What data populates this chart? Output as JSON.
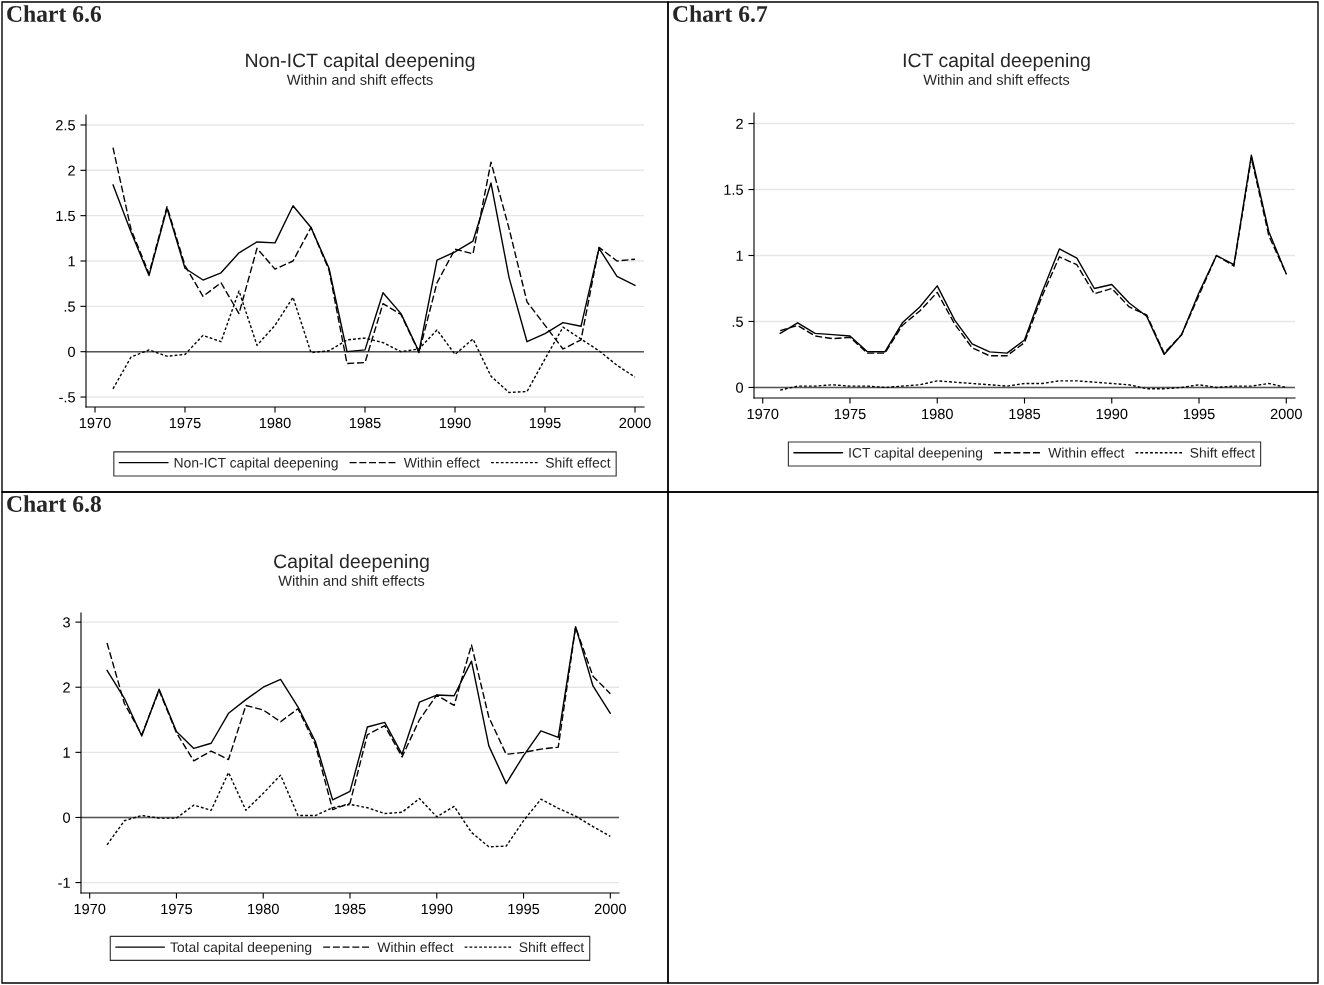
{
  "chart_data": [
    {
      "type": "line",
      "title": "Non-ICT capital deepening",
      "subtitle": "Within and shift effects",
      "annotations": [
        "Chart 6.6"
      ],
      "x": [
        1971,
        1972,
        1973,
        1974,
        1975,
        1976,
        1977,
        1978,
        1979,
        1980,
        1981,
        1982,
        1983,
        1984,
        1985,
        1986,
        1987,
        1988,
        1989,
        1990,
        1991,
        1992,
        1993,
        1994,
        1995,
        1996,
        1997,
        1998,
        1999,
        2000
      ],
      "series": [
        {
          "name": "Non-ICT capital deepening",
          "color": "#000000",
          "line_style": "solid",
          "values": [
            1.84,
            1.32,
            0.84,
            1.58,
            0.92,
            0.79,
            0.87,
            1.09,
            1.21,
            1.2,
            1.61,
            1.37,
            0.92,
            0.0,
            0.02,
            0.65,
            0.42,
            0.0,
            1.01,
            1.1,
            1.22,
            1.86,
            0.82,
            0.11,
            0.2,
            0.32,
            0.28,
            1.14,
            0.83,
            0.73
          ]
        },
        {
          "name": "Within effect",
          "color": "#000000",
          "line_style": "dashed",
          "values": [
            2.25,
            1.35,
            0.86,
            1.6,
            0.95,
            0.61,
            0.76,
            0.42,
            1.14,
            0.91,
            1.0,
            1.37,
            0.9,
            -0.13,
            -0.12,
            0.53,
            0.41,
            -0.01,
            0.76,
            1.13,
            1.08,
            2.09,
            1.36,
            0.55,
            0.29,
            0.03,
            0.13,
            1.15,
            1.0,
            1.02
          ]
        },
        {
          "name": "Shift effect",
          "color": "#000000",
          "line_style": "dotted",
          "values": [
            -0.41,
            -0.06,
            0.02,
            -0.05,
            -0.03,
            0.18,
            0.11,
            0.67,
            0.07,
            0.29,
            0.6,
            -0.01,
            0.01,
            0.13,
            0.15,
            0.1,
            0.0,
            0.03,
            0.24,
            -0.03,
            0.14,
            -0.27,
            -0.45,
            -0.44,
            -0.08,
            0.27,
            0.14,
            0.01,
            -0.15,
            -0.28
          ]
        }
      ],
      "xlim": [
        1969.5,
        2000.5
      ],
      "xticks": [
        1970,
        1975,
        1980,
        1985,
        1990,
        1995,
        2000
      ],
      "ylim": [
        -0.61,
        2.61
      ],
      "yticks": [
        {
          "value": -0.5,
          "label": "-.5"
        },
        0,
        {
          "value": 0.5,
          "label": ".5"
        },
        1,
        {
          "value": 1.5,
          "label": "1.5"
        },
        2,
        {
          "value": 2.5,
          "label": "2.5"
        }
      ],
      "grid": "y",
      "legend": "bottom",
      "ref_lines": [
        {
          "axis": "y",
          "value": 0,
          "label": null
        }
      ]
    },
    {
      "type": "line",
      "title": "ICT capital deepening",
      "subtitle": "Within and shift effects",
      "annotations": [
        "Chart 6.7"
      ],
      "x": [
        1971,
        1972,
        1973,
        1974,
        1975,
        1976,
        1977,
        1978,
        1979,
        1980,
        1981,
        1982,
        1983,
        1984,
        1985,
        1986,
        1987,
        1988,
        1989,
        1990,
        1991,
        1992,
        1993,
        1994,
        1995,
        1996,
        1997,
        1998,
        1999,
        2000
      ],
      "series": [
        {
          "name": "ICT capital deepening",
          "color": "#000000",
          "line_style": "solid",
          "values": [
            0.41,
            0.49,
            0.41,
            0.4,
            0.39,
            0.27,
            0.27,
            0.49,
            0.61,
            0.77,
            0.51,
            0.33,
            0.27,
            0.26,
            0.36,
            0.72,
            1.05,
            0.98,
            0.75,
            0.78,
            0.64,
            0.54,
            0.25,
            0.4,
            0.72,
            1.0,
            0.93,
            1.76,
            1.18,
            0.86
          ]
        },
        {
          "name": "Within effect",
          "color": "#000000",
          "line_style": "dashed",
          "values": [
            0.43,
            0.47,
            0.39,
            0.37,
            0.38,
            0.26,
            0.26,
            0.47,
            0.58,
            0.72,
            0.48,
            0.3,
            0.24,
            0.24,
            0.34,
            0.69,
            0.99,
            0.93,
            0.71,
            0.75,
            0.61,
            0.55,
            0.26,
            0.4,
            0.7,
            1.0,
            0.92,
            1.74,
            1.15,
            0.86
          ]
        },
        {
          "name": "Shift effect",
          "color": "#000000",
          "line_style": "dotted",
          "values": [
            -0.02,
            0.01,
            0.01,
            0.02,
            0.01,
            0.01,
            0.0,
            0.01,
            0.02,
            0.05,
            0.04,
            0.03,
            0.02,
            0.01,
            0.03,
            0.03,
            0.05,
            0.05,
            0.04,
            0.03,
            0.02,
            -0.01,
            -0.01,
            0.0,
            0.02,
            0.0,
            0.01,
            0.01,
            0.03,
            0.0
          ]
        }
      ],
      "xlim": [
        1969.5,
        2000.5
      ],
      "xticks": [
        1970,
        1975,
        1980,
        1985,
        1990,
        1995,
        2000
      ],
      "ylim": [
        -0.08,
        2.08
      ],
      "yticks": [
        0,
        {
          "value": 0.5,
          "label": ".5"
        },
        1,
        {
          "value": 1.5,
          "label": "1.5"
        },
        2
      ],
      "grid": "y",
      "legend": "bottom",
      "ref_lines": [
        {
          "axis": "y",
          "value": 0,
          "label": null
        }
      ]
    },
    {
      "type": "line",
      "title": "Capital deepening",
      "subtitle": "Within and shift effects",
      "annotations": [
        "Chart 6.8"
      ],
      "x": [
        1971,
        1972,
        1973,
        1974,
        1975,
        1976,
        1977,
        1978,
        1979,
        1980,
        1981,
        1982,
        1983,
        1984,
        1985,
        1986,
        1987,
        1988,
        1989,
        1990,
        1991,
        1992,
        1993,
        1994,
        1995,
        1996,
        1997,
        1998,
        1999,
        2000
      ],
      "series": [
        {
          "name": "Total capital deepening",
          "color": "#000000",
          "line_style": "solid",
          "values": [
            2.26,
            1.83,
            1.25,
            1.97,
            1.32,
            1.06,
            1.14,
            1.6,
            1.81,
            2.0,
            2.12,
            1.7,
            1.17,
            0.27,
            0.4,
            1.39,
            1.46,
            0.97,
            1.77,
            1.88,
            1.87,
            2.4,
            1.1,
            0.52,
            0.95,
            1.33,
            1.23,
            2.93,
            2.02,
            1.6
          ]
        },
        {
          "name": "Within effect",
          "color": "#000000",
          "line_style": "dashed",
          "values": [
            2.68,
            1.75,
            1.27,
            1.95,
            1.3,
            0.87,
            1.02,
            0.89,
            1.72,
            1.65,
            1.47,
            1.67,
            1.12,
            0.12,
            0.22,
            1.27,
            1.41,
            0.93,
            1.5,
            1.88,
            1.72,
            2.65,
            1.54,
            0.97,
            1.0,
            1.05,
            1.08,
            2.92,
            2.17,
            1.9
          ]
        },
        {
          "name": "Shift effect",
          "color": "#000000",
          "line_style": "dotted",
          "values": [
            -0.42,
            -0.05,
            0.03,
            -0.01,
            -0.01,
            0.19,
            0.11,
            0.69,
            0.11,
            0.37,
            0.65,
            0.03,
            0.03,
            0.15,
            0.2,
            0.15,
            0.06,
            0.08,
            0.29,
            0.01,
            0.17,
            -0.23,
            -0.45,
            -0.44,
            -0.05,
            0.28,
            0.14,
            0.02,
            -0.14,
            -0.29
          ]
        }
      ],
      "xlim": [
        1969.5,
        2000.5
      ],
      "xticks": [
        1970,
        1975,
        1980,
        1985,
        1990,
        1995,
        2000
      ],
      "ylim": [
        -1.16,
        3.14
      ],
      "yticks": [
        -1,
        0,
        1,
        2,
        3
      ],
      "grid": "y",
      "legend": "bottom",
      "ref_lines": [
        {
          "axis": "y",
          "value": 0,
          "label": null
        }
      ]
    }
  ]
}
